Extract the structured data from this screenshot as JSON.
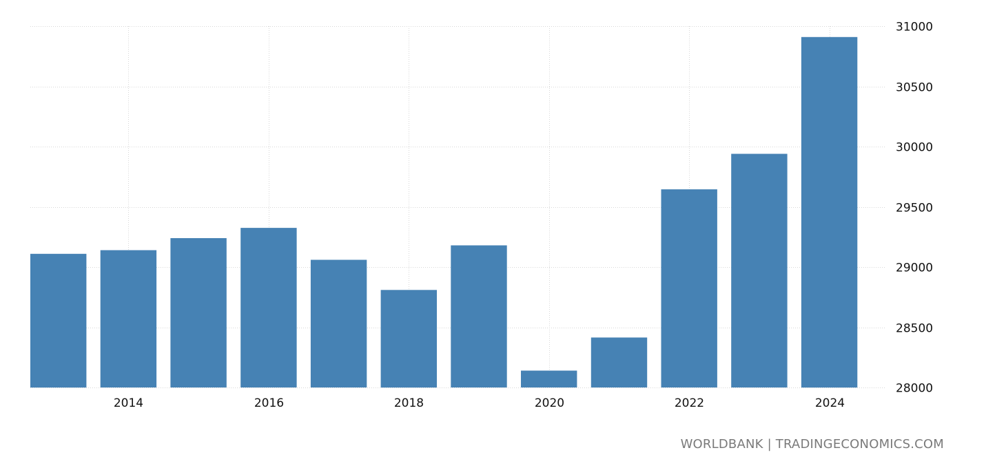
{
  "chart_data": {
    "type": "bar",
    "categories": [
      "2013",
      "2014",
      "2015",
      "2016",
      "2017",
      "2018",
      "2019",
      "2020",
      "2021",
      "2022",
      "2023",
      "2024"
    ],
    "values": [
      29110,
      29140,
      29240,
      29325,
      29060,
      28810,
      29180,
      28140,
      28415,
      29645,
      29940,
      30910
    ],
    "x_tick_labels": [
      "2014",
      "2016",
      "2018",
      "2020",
      "2022",
      "2024"
    ],
    "y_tick_labels": [
      "28000",
      "28500",
      "29000",
      "29500",
      "30000",
      "30500",
      "31000"
    ],
    "ylim": [
      28000,
      31000
    ],
    "xlim": [
      2012.6,
      2024.8
    ],
    "grid": true,
    "bar_color": "#4682b4",
    "source": "WORLDBANK | TRADINGECONOMICS.COM"
  }
}
